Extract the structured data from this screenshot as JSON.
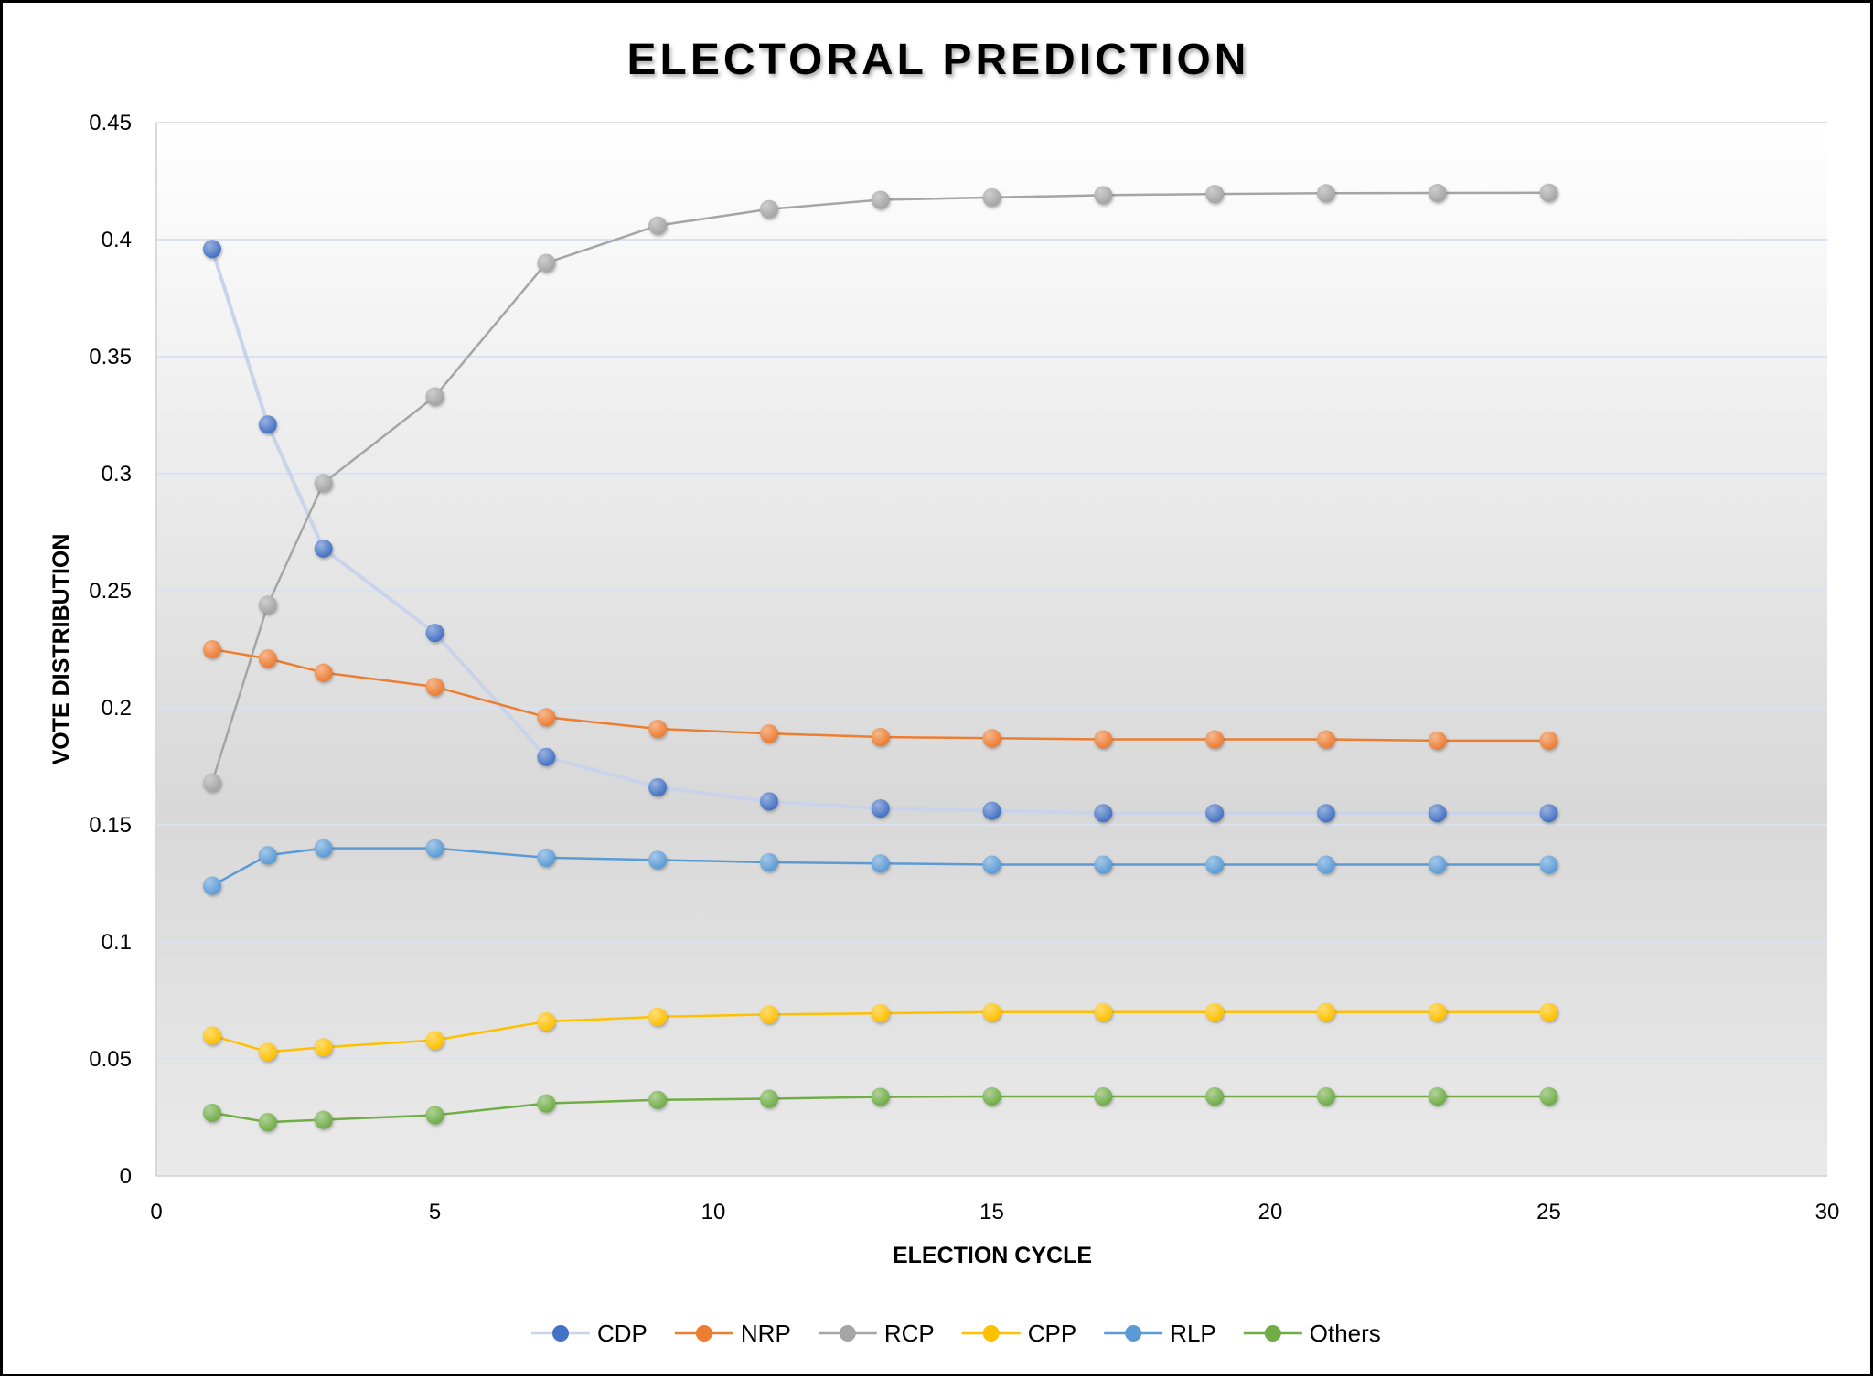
{
  "chart_data": {
    "type": "scatter",
    "title": "ELECTORAL PREDICTION",
    "xlabel": "ELECTION CYCLE",
    "ylabel": "VOTE DISTRIBUTION",
    "xlim": [
      0,
      30
    ],
    "ylim": [
      0,
      0.45
    ],
    "x_ticks": [
      "0",
      "5",
      "10",
      "15",
      "20",
      "25",
      "30"
    ],
    "y_ticks": [
      "0",
      "0.05",
      "0.1",
      "0.15",
      "0.2",
      "0.25",
      "0.3",
      "0.35",
      "0.4",
      "0.45"
    ],
    "grid": "horizontal",
    "legend_position": "bottom",
    "x": [
      1,
      2,
      3,
      5,
      7,
      9,
      11,
      13,
      15,
      17,
      19,
      21,
      23,
      25
    ],
    "series": [
      {
        "name": "CDP",
        "color": "#4472C4",
        "line_color": "#C9D3EA",
        "values": [
          0.396,
          0.321,
          0.268,
          0.232,
          0.179,
          0.166,
          0.16,
          0.157,
          0.156,
          0.155,
          0.155,
          0.155,
          0.155,
          0.155
        ]
      },
      {
        "name": "NRP",
        "color": "#ED7D31",
        "line_color": "#ED7D31",
        "values": [
          0.225,
          0.221,
          0.215,
          0.209,
          0.196,
          0.191,
          0.189,
          0.1875,
          0.187,
          0.1865,
          0.1865,
          0.1865,
          0.186,
          0.186
        ]
      },
      {
        "name": "RCP",
        "color": "#A5A5A5",
        "line_color": "#A5A5A5",
        "values": [
          0.168,
          0.244,
          0.296,
          0.333,
          0.39,
          0.406,
          0.413,
          0.417,
          0.418,
          0.419,
          0.4195,
          0.4198,
          0.4199,
          0.42
        ]
      },
      {
        "name": "CPP",
        "color": "#FFC000",
        "line_color": "#FFC000",
        "values": [
          0.06,
          0.053,
          0.055,
          0.058,
          0.066,
          0.068,
          0.069,
          0.0695,
          0.07,
          0.07,
          0.07,
          0.07,
          0.07,
          0.07
        ]
      },
      {
        "name": "RLP",
        "color": "#5B9BD5",
        "line_color": "#5B9BD5",
        "values": [
          0.124,
          0.137,
          0.14,
          0.14,
          0.136,
          0.135,
          0.134,
          0.1335,
          0.133,
          0.133,
          0.133,
          0.133,
          0.133,
          0.133
        ]
      },
      {
        "name": "Others",
        "color": "#70AD47",
        "line_color": "#70AD47",
        "values": [
          0.027,
          0.023,
          0.024,
          0.026,
          0.031,
          0.0325,
          0.033,
          0.0338,
          0.034,
          0.034,
          0.034,
          0.034,
          0.034,
          0.034
        ]
      }
    ]
  }
}
